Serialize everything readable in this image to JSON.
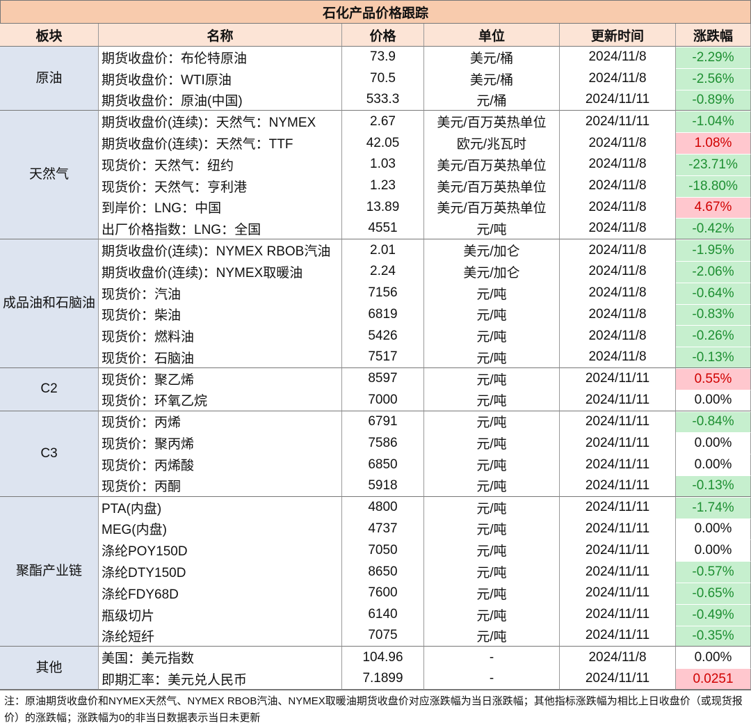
{
  "title": "石化产品价格跟踪",
  "header": [
    "板块",
    "名称",
    "价格",
    "单位",
    "更新时间",
    "涨跌幅"
  ],
  "groups": [
    {
      "label": "原油",
      "rows": [
        [
          "期货收盘价：布伦特原油",
          73.9,
          "美元/桶",
          "2024/11/8",
          "-2.29%"
        ],
        [
          "期货收盘价：WTI原油",
          70.5,
          "美元/桶",
          "2024/11/8",
          "-2.56%"
        ],
        [
          "期货收盘价：原油(中国)",
          533.3,
          "元/桶",
          "2024/11/11",
          "-0.89%"
        ]
      ]
    },
    {
      "label": "天然气",
      "rows": [
        [
          "期货收盘价(连续)：天然气：NYMEX",
          2.67,
          "美元/百万英热单位",
          "2024/11/11",
          "-1.04%"
        ],
        [
          "期货收盘价(连续)：天然气：TTF",
          42.05,
          "欧元/兆瓦时",
          "2024/11/8",
          "1.08%"
        ],
        [
          "现货价：天然气：纽约",
          1.03,
          "美元/百万英热单位",
          "2024/11/8",
          "-23.71%"
        ],
        [
          "现货价：天然气：亨利港",
          1.23,
          "美元/百万英热单位",
          "2024/11/8",
          "-18.80%"
        ],
        [
          "到岸价：LNG：中国",
          13.89,
          "美元/百万英热单位",
          "2024/11/8",
          "4.67%"
        ],
        [
          "出厂价格指数：LNG：全国",
          4551,
          "元/吨",
          "2024/11/8",
          "-0.42%"
        ]
      ]
    },
    {
      "label": "成品油和石脑油",
      "rows": [
        [
          "期货收盘价(连续)：NYMEX RBOB汽油",
          2.01,
          "美元/加仑",
          "2024/11/8",
          "-1.95%"
        ],
        [
          "期货收盘价(连续)：NYMEX取暖油",
          2.24,
          "美元/加仑",
          "2024/11/8",
          "-2.06%"
        ],
        [
          "现货价：汽油",
          7156,
          "元/吨",
          "2024/11/8",
          "-0.64%"
        ],
        [
          "现货价：柴油",
          6819,
          "元/吨",
          "2024/11/8",
          "-0.83%"
        ],
        [
          "现货价：燃料油",
          5426,
          "元/吨",
          "2024/11/8",
          "-0.26%"
        ],
        [
          "现货价：石脑油",
          7517,
          "元/吨",
          "2024/11/8",
          "-0.13%"
        ]
      ]
    },
    {
      "label": "C2",
      "rows": [
        [
          "现货价：聚乙烯",
          8597,
          "元/吨",
          "2024/11/11",
          "0.55%"
        ],
        [
          "现货价：环氧乙烷",
          7000,
          "元/吨",
          "2024/11/11",
          "0.00%"
        ]
      ]
    },
    {
      "label": "C3",
      "rows": [
        [
          "现货价：丙烯",
          6791,
          "元/吨",
          "2024/11/11",
          "-0.84%"
        ],
        [
          "现货价：聚丙烯",
          7586,
          "元/吨",
          "2024/11/11",
          "0.00%"
        ],
        [
          "现货价：丙烯酸",
          6850,
          "元/吨",
          "2024/11/11",
          "0.00%"
        ],
        [
          "现货价：丙酮",
          5918,
          "元/吨",
          "2024/11/11",
          "-0.13%"
        ]
      ]
    },
    {
      "label": "聚酯产业链",
      "rows": [
        [
          "PTA(内盘)",
          4800,
          "元/吨",
          "2024/11/11",
          "-1.74%"
        ],
        [
          "MEG(内盘)",
          4737,
          "元/吨",
          "2024/11/11",
          "0.00%"
        ],
        [
          "涤纶POY150D",
          7050,
          "元/吨",
          "2024/11/11",
          "0.00%"
        ],
        [
          "涤纶DTY150D",
          8650,
          "元/吨",
          "2024/11/11",
          "-0.57%"
        ],
        [
          "涤纶FDY68D",
          7600,
          "元/吨",
          "2024/11/11",
          "-0.65%"
        ],
        [
          "瓶级切片",
          6140,
          "元/吨",
          "2024/11/11",
          "-0.49%"
        ],
        [
          "涤纶短纤",
          7075,
          "元/吨",
          "2024/11/11",
          "-0.35%"
        ]
      ]
    },
    {
      "label": "其他",
      "rows": [
        [
          "美国：美元指数",
          104.96,
          "-",
          "2024/11/8",
          "0.00%"
        ],
        [
          "即期汇率：美元兑人民币",
          7.1899,
          "-",
          "2024/11/11",
          "0.0251"
        ]
      ]
    }
  ],
  "note": "注：原油期货收盘价和NYMEX天然气、NYMEX RBOB汽油、NYMEX取暖油期货收盘价对应涨跌幅为当日涨跌幅；其他指标涨跌幅为相比上日收盘价（或现货报价）的涨跌幅；涨跌幅为0的非当日数据表示当日未更新"
}
